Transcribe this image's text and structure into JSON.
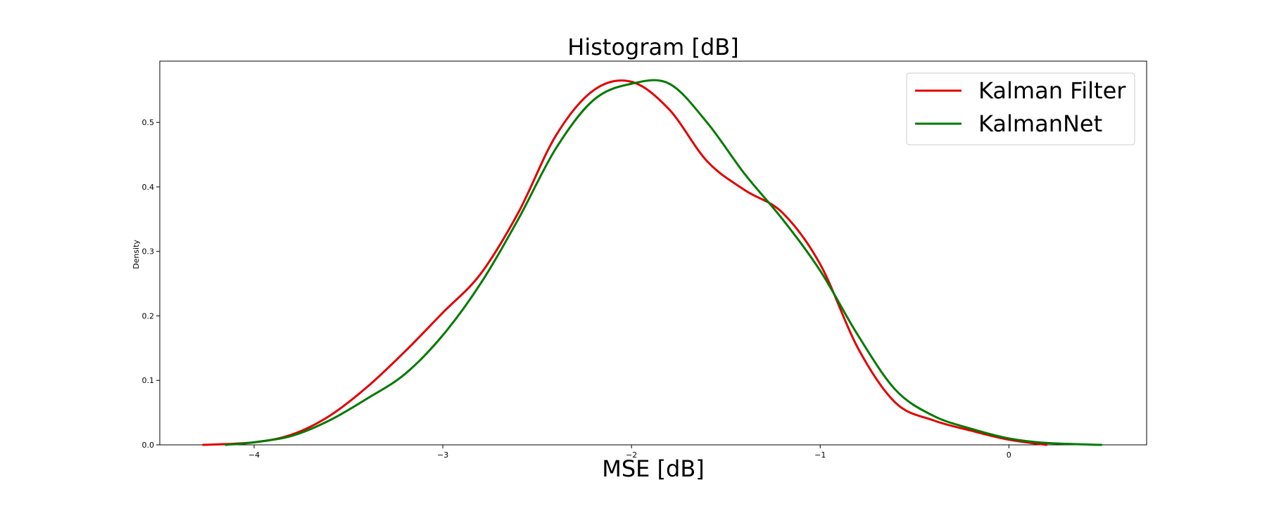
{
  "chart_data": {
    "type": "line",
    "title": "Histogram [dB]",
    "xlabel": "MSE [dB]",
    "ylabel": "Density",
    "xlim": [
      -4.5,
      0.73
    ],
    "ylim": [
      0,
      0.595
    ],
    "xticks": [
      -4,
      -3,
      -2,
      -1,
      0
    ],
    "xtick_labels": [
      "−4",
      "−3",
      "−2",
      "−1",
      "0"
    ],
    "yticks": [
      0.0,
      0.1,
      0.2,
      0.3,
      0.4,
      0.5
    ],
    "ytick_labels": [
      "0.0",
      "0.1",
      "0.2",
      "0.3",
      "0.4",
      "0.5"
    ],
    "grid": false,
    "legend_position": "top-right",
    "series": [
      {
        "name": "Kalman Filter",
        "color": "#e00000",
        "x": [
          -4.27,
          -4.0,
          -3.8,
          -3.6,
          -3.4,
          -3.2,
          -3.0,
          -2.8,
          -2.6,
          -2.4,
          -2.2,
          -2.0,
          -1.8,
          -1.6,
          -1.4,
          -1.2,
          -1.0,
          -0.8,
          -0.6,
          -0.4,
          -0.2,
          0.0,
          0.2
        ],
        "y": [
          0.0,
          0.004,
          0.016,
          0.045,
          0.09,
          0.145,
          0.205,
          0.265,
          0.36,
          0.48,
          0.55,
          0.563,
          0.52,
          0.44,
          0.395,
          0.36,
          0.28,
          0.15,
          0.065,
          0.038,
          0.022,
          0.008,
          0.0
        ]
      },
      {
        "name": "KalmanNet",
        "color": "#007a00",
        "x": [
          -4.15,
          -4.0,
          -3.8,
          -3.6,
          -3.4,
          -3.2,
          -3.0,
          -2.8,
          -2.6,
          -2.4,
          -2.2,
          -2.0,
          -1.8,
          -1.6,
          -1.4,
          -1.2,
          -1.0,
          -0.8,
          -0.6,
          -0.4,
          -0.2,
          0.0,
          0.2,
          0.49
        ],
        "y": [
          0.0,
          0.004,
          0.014,
          0.038,
          0.072,
          0.11,
          0.17,
          0.25,
          0.35,
          0.46,
          0.535,
          0.56,
          0.56,
          0.5,
          0.42,
          0.35,
          0.27,
          0.17,
          0.085,
          0.045,
          0.025,
          0.01,
          0.003,
          0.0
        ]
      }
    ]
  }
}
